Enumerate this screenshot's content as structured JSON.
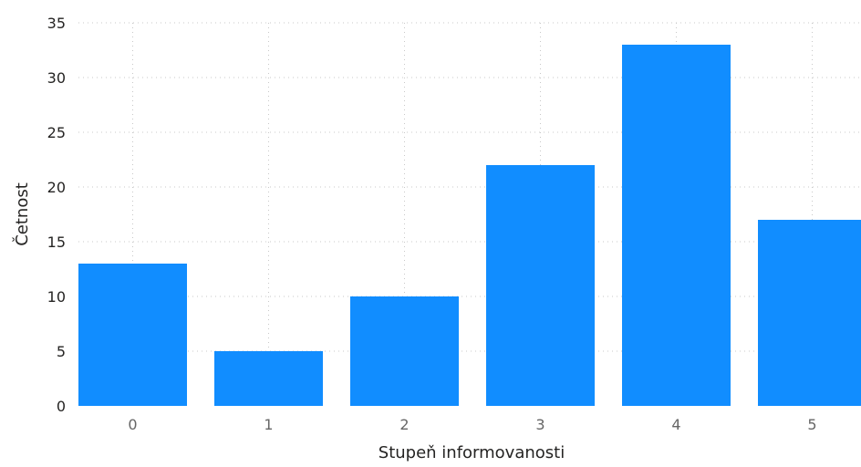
{
  "chart_data": {
    "type": "bar",
    "categories": [
      "0",
      "1",
      "2",
      "3",
      "4",
      "5"
    ],
    "values": [
      13,
      5,
      10,
      22,
      33,
      17
    ],
    "xlabel": "Stupeň informovanosti",
    "ylabel": "Četnost",
    "ylim": [
      0,
      35
    ],
    "yticks": [
      0,
      5,
      10,
      15,
      20,
      25,
      30,
      35
    ],
    "grid": true,
    "legend": "none",
    "bar_color": "#118DFF"
  }
}
